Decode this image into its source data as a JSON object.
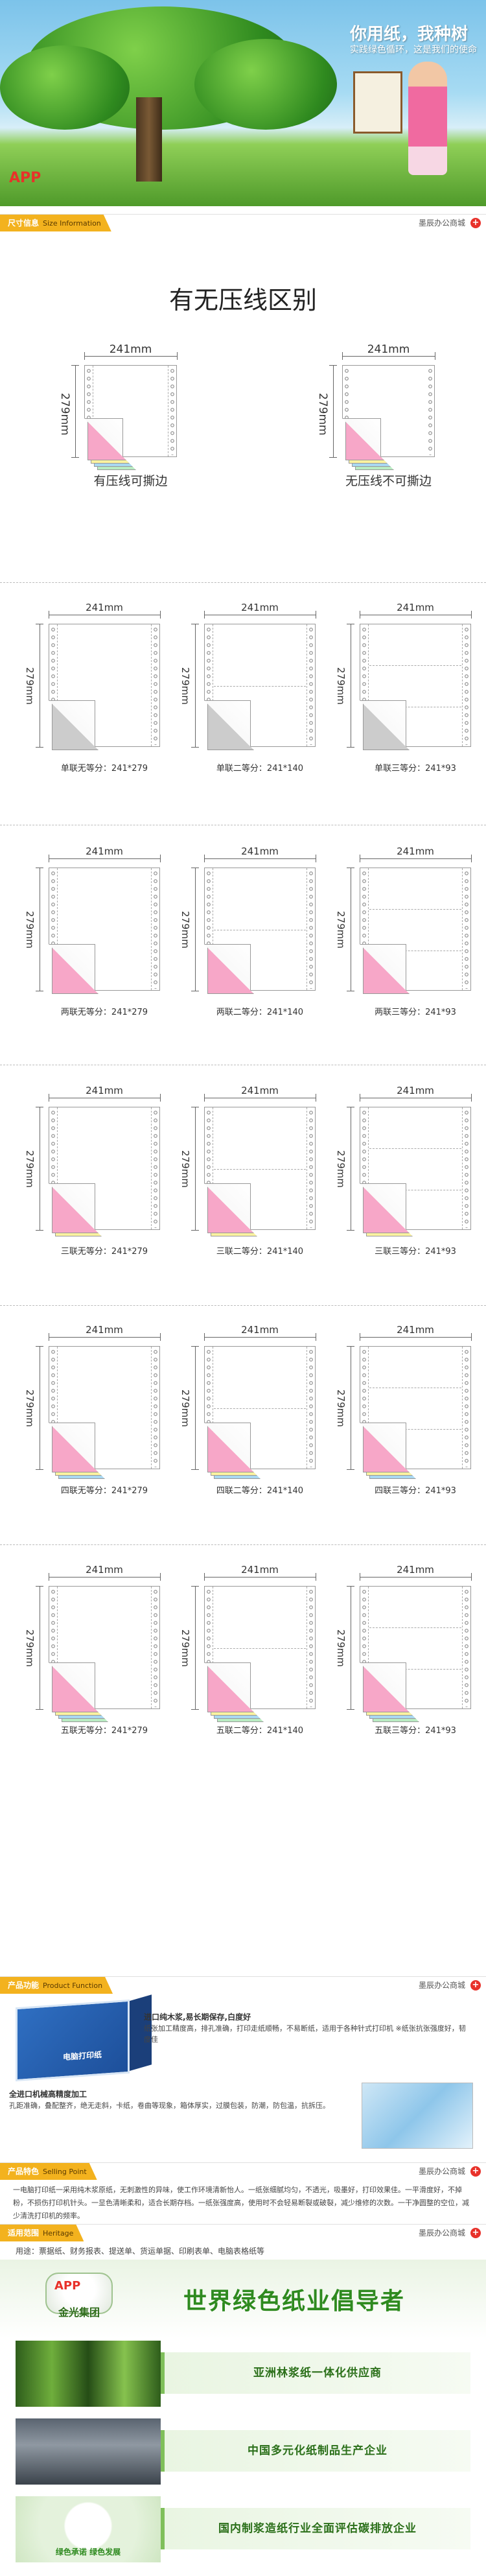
{
  "hero": {
    "slogan": "你用纸，我种树",
    "subtitle": "实践绿色循环，这是我们的使命",
    "logo": "APP"
  },
  "sections": {
    "size": {
      "label": "尺寸信息",
      "label_en": "Size Information"
    },
    "function": {
      "label": "产品功能",
      "label_en": "Product Function"
    },
    "selling": {
      "label": "产品特色",
      "label_en": "Selling Point"
    },
    "heritage": {
      "label": "适用范围",
      "label_en": "Heritage"
    },
    "store_name": "墨辰办公商城",
    "plus": "+"
  },
  "title": "有无压线区别",
  "compare": [
    {
      "width": "241mm",
      "height": "279mm",
      "caption": "有压线可撕边"
    },
    {
      "width": "241mm",
      "height": "279mm",
      "caption": "无压线不可撕边"
    }
  ],
  "grid_rows": [
    {
      "colors": [
        "#cccccc"
      ],
      "items": [
        {
          "width": "241mm",
          "height": "279mm",
          "caption": "单联无等分：241*279",
          "parts": 1
        },
        {
          "width": "241mm",
          "height": "279mm",
          "caption": "单联二等分：241*140",
          "parts": 2
        },
        {
          "width": "241mm",
          "height": "279mm",
          "caption": "单联三等分：241*93",
          "parts": 3
        }
      ]
    },
    {
      "colors": [
        "#f7a7c8"
      ],
      "items": [
        {
          "width": "241mm",
          "height": "279mm",
          "caption": "两联无等分：241*279",
          "parts": 1
        },
        {
          "width": "241mm",
          "height": "279mm",
          "caption": "两联二等分：241*140",
          "parts": 2
        },
        {
          "width": "241mm",
          "height": "279mm",
          "caption": "两联三等分：241*93",
          "parts": 3
        }
      ]
    },
    {
      "colors": [
        "#f7a7c8",
        "#fbf2a0"
      ],
      "items": [
        {
          "width": "241mm",
          "height": "279mm",
          "caption": "三联无等分：241*279",
          "parts": 1
        },
        {
          "width": "241mm",
          "height": "279mm",
          "caption": "三联二等分：241*140",
          "parts": 2
        },
        {
          "width": "241mm",
          "height": "279mm",
          "caption": "三联三等分：241*93",
          "parts": 3
        }
      ]
    },
    {
      "colors": [
        "#f7a7c8",
        "#fbf2a0",
        "#a9d8f2"
      ],
      "items": [
        {
          "width": "241mm",
          "height": "279mm",
          "caption": "四联无等分：241*279",
          "parts": 1
        },
        {
          "width": "241mm",
          "height": "279mm",
          "caption": "四联二等分：241*140",
          "parts": 2
        },
        {
          "width": "241mm",
          "height": "279mm",
          "caption": "四联三等分：241*93",
          "parts": 3
        }
      ]
    },
    {
      "colors": [
        "#f7a7c8",
        "#fbf2a0",
        "#a9d8f2",
        "#b9ecc2"
      ],
      "items": [
        {
          "width": "241mm",
          "height": "279mm",
          "caption": "五联无等分：241*279",
          "parts": 1
        },
        {
          "width": "241mm",
          "height": "279mm",
          "caption": "五联二等分：241*140",
          "parts": 2
        },
        {
          "width": "241mm",
          "height": "279mm",
          "caption": "五联三等分：241*93",
          "parts": 3
        }
      ]
    }
  ],
  "function": {
    "box_label": "电脑打印纸",
    "feature1_title": "进口纯木浆,易长期保存,白度好",
    "feature1_text": "纸张加工精度高，排孔准确，打印走纸顺畅，不易断纸，适用于各种针式打印机 ※纸张抗张强度好，韧度佳",
    "feature2_title": "全进口机械高精度加工",
    "feature2_text": "孔距准确，叠配整齐，绝无走斜，卡纸，卷曲等现象，箱体厚实，过膜包装，防潮，防包温，抗拆压。"
  },
  "selling_text": "一电脑打印纸一采用纯木浆原纸，无刺激性的异味，使工作环境清新怡人。一纸张细腻均匀，不透光，吸墨好，打印效果佳。一平滑度好，不掉粉，不损伤打印机针头。一显色清晰柔和，适合长期存档。一纸张强度高，使用时不会轻易断裂或破裂，减少维修的次数。一干净圆整的空位，减少清洗打印机的频率。",
  "heritage_text": "用途：票据纸、财务报表、提送单、货运单据、印刷表单、电脑表格纸等",
  "brand": {
    "logo": "APP",
    "group": "金光集团",
    "headline": "世界绿色纸业倡导者",
    "rows": [
      "亚洲林浆纸一体化供应商",
      "中国多元化纸制品生产企业",
      "国内制浆造纸行业全面评估碳排放企业"
    ],
    "badge": "绿色承诺 绿色发展"
  }
}
